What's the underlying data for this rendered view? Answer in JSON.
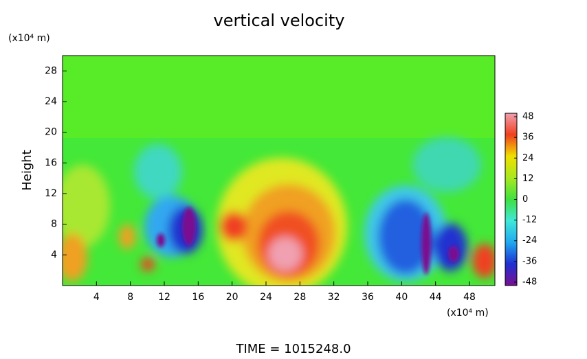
{
  "chart_data": {
    "type": "contour",
    "title": "vertical velocity",
    "ylabel": "Height",
    "y_unit": "(x10⁴ m)",
    "x_unit": "(x10⁴ m)",
    "footer": "TIME = 1015248.0",
    "xlim": [
      0,
      51
    ],
    "xticks": [
      4,
      8,
      12,
      16,
      20,
      24,
      28,
      32,
      36,
      40,
      44,
      48
    ],
    "ylim": [
      0,
      30
    ],
    "yticks": [
      4,
      8,
      12,
      16,
      20,
      24,
      28
    ],
    "colorbar": {
      "lim": [
        -50,
        50
      ],
      "ticks": [
        48,
        36,
        24,
        12,
        0,
        -12,
        -24,
        -36,
        -48
      ],
      "colors": [
        "#7a1090",
        "#2030d0",
        "#20a8f0",
        "#40e8d8",
        "#40e040",
        "#a8e820",
        "#f0e000",
        "#f04020",
        "#f0a0b0"
      ]
    }
  }
}
